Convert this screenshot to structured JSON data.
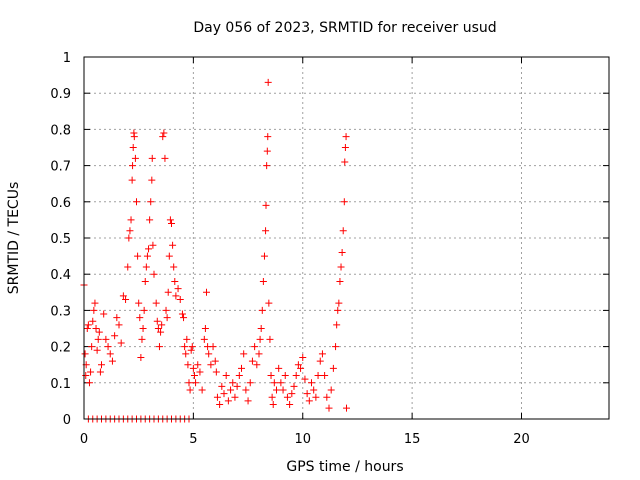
{
  "chart_data": {
    "type": "scatter",
    "title": "Day 056 of 2023, SRMTID for receiver usud",
    "xlabel": "GPS time / hours",
    "ylabel": "SRMTID / TECUs",
    "xlim": [
      0,
      24
    ],
    "ylim": [
      0,
      1
    ],
    "xticks": [
      0,
      5,
      10,
      15,
      20
    ],
    "xtick_labels": [
      "0",
      "5",
      "10",
      "15",
      "20"
    ],
    "yticks": [
      0,
      0.1,
      0.2,
      0.3,
      0.4,
      0.5,
      0.6,
      0.7,
      0.8,
      0.9,
      1
    ],
    "ytick_labels": [
      "0",
      "0.1",
      "0.2",
      "0.3",
      "0.4",
      "0.5",
      "0.6",
      "0.7",
      "0.8",
      "0.9",
      "1"
    ],
    "grid": true,
    "marker": "+",
    "marker_color": "#ff0000",
    "series": [
      {
        "name": "SRMTID",
        "points": [
          [
            0.0,
            0.37
          ],
          [
            0.05,
            0.18
          ],
          [
            0.08,
            0.12
          ],
          [
            0.1,
            0.15
          ],
          [
            0.15,
            0.25
          ],
          [
            0.2,
            0.26
          ],
          [
            0.25,
            0.1
          ],
          [
            0.3,
            0.13
          ],
          [
            0.35,
            0.2
          ],
          [
            0.4,
            0.27
          ],
          [
            0.45,
            0.3
          ],
          [
            0.5,
            0.32
          ],
          [
            0.55,
            0.25
          ],
          [
            0.6,
            0.19
          ],
          [
            0.65,
            0.22
          ],
          [
            0.7,
            0.24
          ],
          [
            0.75,
            0.13
          ],
          [
            0.8,
            0.15
          ],
          [
            0.9,
            0.29
          ],
          [
            1.0,
            0.22
          ],
          [
            1.1,
            0.2
          ],
          [
            1.2,
            0.18
          ],
          [
            1.3,
            0.16
          ],
          [
            1.4,
            0.23
          ],
          [
            1.5,
            0.28
          ],
          [
            1.6,
            0.26
          ],
          [
            1.7,
            0.21
          ],
          [
            1.8,
            0.34
          ],
          [
            1.9,
            0.33
          ],
          [
            2.0,
            0.42
          ],
          [
            2.05,
            0.5
          ],
          [
            2.1,
            0.52
          ],
          [
            2.15,
            0.55
          ],
          [
            2.2,
            0.66
          ],
          [
            2.22,
            0.7
          ],
          [
            2.25,
            0.75
          ],
          [
            2.28,
            0.79
          ],
          [
            2.3,
            0.78
          ],
          [
            2.35,
            0.72
          ],
          [
            2.4,
            0.6
          ],
          [
            2.45,
            0.45
          ],
          [
            2.5,
            0.32
          ],
          [
            2.55,
            0.28
          ],
          [
            2.6,
            0.17
          ],
          [
            2.65,
            0.22
          ],
          [
            2.7,
            0.25
          ],
          [
            2.75,
            0.3
          ],
          [
            2.8,
            0.38
          ],
          [
            2.85,
            0.42
          ],
          [
            2.9,
            0.45
          ],
          [
            2.95,
            0.47
          ],
          [
            3.0,
            0.55
          ],
          [
            3.05,
            0.6
          ],
          [
            3.1,
            0.66
          ],
          [
            3.12,
            0.72
          ],
          [
            3.15,
            0.48
          ],
          [
            3.2,
            0.4
          ],
          [
            3.3,
            0.32
          ],
          [
            3.35,
            0.27
          ],
          [
            3.4,
            0.25
          ],
          [
            3.45,
            0.2
          ],
          [
            3.5,
            0.24
          ],
          [
            3.55,
            0.26
          ],
          [
            3.6,
            0.78
          ],
          [
            3.65,
            0.79
          ],
          [
            3.7,
            0.72
          ],
          [
            3.75,
            0.3
          ],
          [
            3.8,
            0.28
          ],
          [
            3.85,
            0.35
          ],
          [
            3.9,
            0.45
          ],
          [
            3.95,
            0.55
          ],
          [
            4.0,
            0.54
          ],
          [
            4.05,
            0.48
          ],
          [
            4.1,
            0.42
          ],
          [
            4.15,
            0.38
          ],
          [
            4.2,
            0.34
          ],
          [
            4.3,
            0.36
          ],
          [
            4.4,
            0.33
          ],
          [
            4.5,
            0.29
          ],
          [
            4.55,
            0.28
          ],
          [
            4.6,
            0.2
          ],
          [
            4.65,
            0.18
          ],
          [
            4.7,
            0.22
          ],
          [
            4.75,
            0.15
          ],
          [
            4.8,
            0.1
          ],
          [
            4.85,
            0.08
          ],
          [
            4.9,
            0.19
          ],
          [
            4.95,
            0.2
          ],
          [
            5.0,
            0.14
          ],
          [
            5.05,
            0.12
          ],
          [
            5.1,
            0.1
          ],
          [
            5.2,
            0.15
          ],
          [
            5.3,
            0.13
          ],
          [
            5.4,
            0.08
          ],
          [
            5.5,
            0.22
          ],
          [
            5.55,
            0.25
          ],
          [
            5.6,
            0.35
          ],
          [
            5.65,
            0.2
          ],
          [
            5.7,
            0.18
          ],
          [
            5.8,
            0.15
          ],
          [
            5.9,
            0.2
          ],
          [
            6.0,
            0.16
          ],
          [
            6.05,
            0.13
          ],
          [
            6.1,
            0.06
          ],
          [
            6.2,
            0.04
          ],
          [
            6.3,
            0.09
          ],
          [
            6.4,
            0.07
          ],
          [
            6.5,
            0.12
          ],
          [
            6.6,
            0.05
          ],
          [
            6.7,
            0.08
          ],
          [
            6.8,
            0.1
          ],
          [
            6.9,
            0.06
          ],
          [
            7.0,
            0.09
          ],
          [
            7.1,
            0.12
          ],
          [
            7.2,
            0.14
          ],
          [
            7.3,
            0.18
          ],
          [
            7.4,
            0.08
          ],
          [
            7.5,
            0.05
          ],
          [
            7.6,
            0.1
          ],
          [
            7.7,
            0.16
          ],
          [
            7.8,
            0.2
          ],
          [
            7.9,
            0.15
          ],
          [
            8.0,
            0.18
          ],
          [
            8.05,
            0.22
          ],
          [
            8.1,
            0.25
          ],
          [
            8.15,
            0.3
          ],
          [
            8.2,
            0.38
          ],
          [
            8.25,
            0.45
          ],
          [
            8.3,
            0.52
          ],
          [
            8.32,
            0.59
          ],
          [
            8.35,
            0.7
          ],
          [
            8.38,
            0.74
          ],
          [
            8.4,
            0.78
          ],
          [
            8.42,
            0.93
          ],
          [
            8.45,
            0.32
          ],
          [
            8.5,
            0.22
          ],
          [
            8.55,
            0.12
          ],
          [
            8.6,
            0.06
          ],
          [
            8.65,
            0.04
          ],
          [
            8.7,
            0.1
          ],
          [
            8.8,
            0.08
          ],
          [
            8.9,
            0.14
          ],
          [
            9.0,
            0.1
          ],
          [
            9.1,
            0.08
          ],
          [
            9.2,
            0.12
          ],
          [
            9.3,
            0.06
          ],
          [
            9.4,
            0.04
          ],
          [
            9.5,
            0.07
          ],
          [
            9.6,
            0.09
          ],
          [
            9.7,
            0.12
          ],
          [
            9.8,
            0.15
          ],
          [
            9.9,
            0.14
          ],
          [
            10.0,
            0.17
          ],
          [
            10.1,
            0.11
          ],
          [
            10.2,
            0.07
          ],
          [
            10.3,
            0.05
          ],
          [
            10.4,
            0.1
          ],
          [
            10.5,
            0.08
          ],
          [
            10.6,
            0.06
          ],
          [
            10.7,
            0.12
          ],
          [
            10.8,
            0.16
          ],
          [
            10.9,
            0.18
          ],
          [
            11.0,
            0.12
          ],
          [
            11.1,
            0.06
          ],
          [
            11.2,
            0.03
          ],
          [
            11.3,
            0.08
          ],
          [
            11.4,
            0.14
          ],
          [
            11.5,
            0.2
          ],
          [
            11.55,
            0.26
          ],
          [
            11.6,
            0.3
          ],
          [
            11.65,
            0.32
          ],
          [
            11.7,
            0.38
          ],
          [
            11.75,
            0.42
          ],
          [
            11.8,
            0.46
          ],
          [
            11.85,
            0.52
          ],
          [
            11.9,
            0.6
          ],
          [
            11.92,
            0.71
          ],
          [
            11.95,
            0.75
          ],
          [
            11.98,
            0.78
          ],
          [
            12.0,
            0.03
          ],
          [
            0.2,
            0.0
          ],
          [
            0.4,
            0.0
          ],
          [
            0.6,
            0.0
          ],
          [
            0.8,
            0.0
          ],
          [
            1.0,
            0.0
          ],
          [
            1.2,
            0.0
          ],
          [
            1.4,
            0.0
          ],
          [
            1.6,
            0.0
          ],
          [
            1.8,
            0.0
          ],
          [
            2.0,
            0.0
          ],
          [
            2.2,
            0.0
          ],
          [
            2.4,
            0.0
          ],
          [
            2.6,
            0.0
          ],
          [
            2.8,
            0.0
          ],
          [
            3.0,
            0.0
          ],
          [
            3.2,
            0.0
          ],
          [
            3.4,
            0.0
          ],
          [
            3.6,
            0.0
          ],
          [
            3.8,
            0.0
          ],
          [
            4.0,
            0.0
          ],
          [
            4.2,
            0.0
          ],
          [
            4.4,
            0.0
          ],
          [
            4.6,
            0.0
          ],
          [
            4.8,
            0.0
          ]
        ]
      }
    ]
  }
}
